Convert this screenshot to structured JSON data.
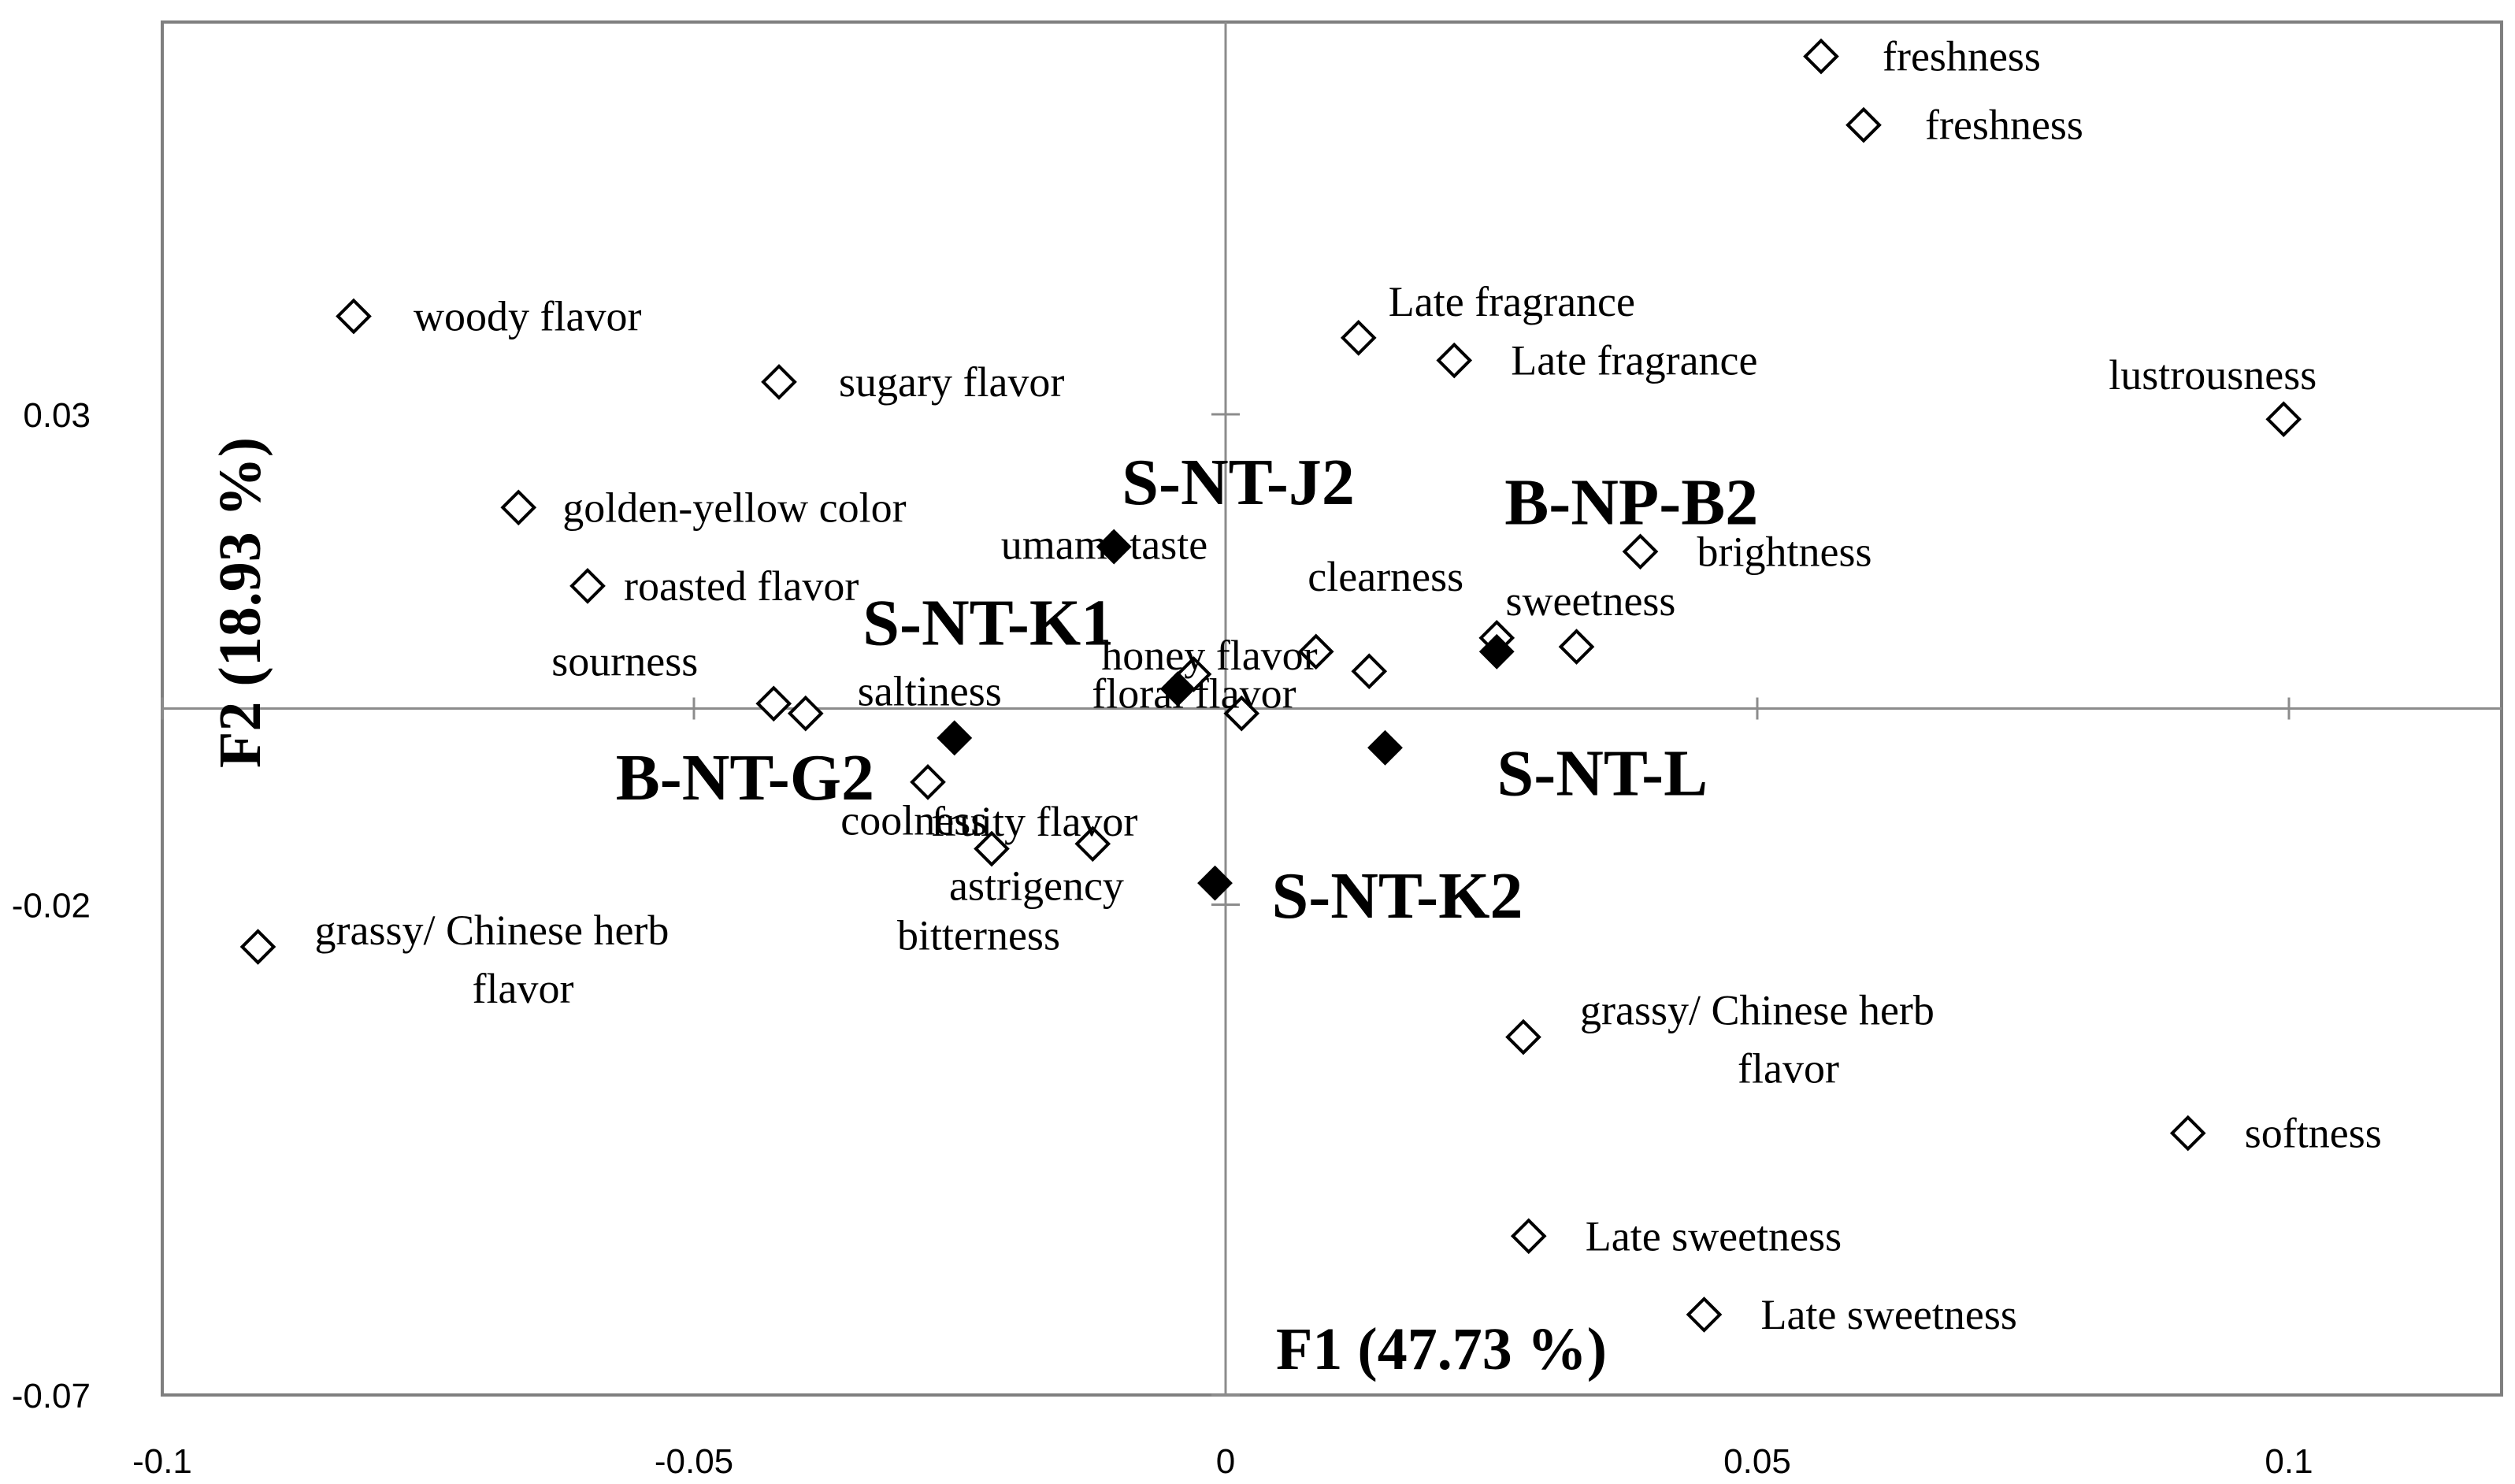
{
  "chart_data": {
    "type": "scatter",
    "title": "",
    "xlabel": "F1 (47.73 %)",
    "ylabel": "F2 (18.93 %)",
    "xlim": [
      -0.1,
      0.12
    ],
    "ylim": [
      -0.07,
      0.07
    ],
    "x_ticks": [
      {
        "value": -0.1,
        "label": "-0.1"
      },
      {
        "value": -0.05,
        "label": "-0.05"
      },
      {
        "value": 0,
        "label": "0"
      },
      {
        "value": 0.05,
        "label": "0.05"
      },
      {
        "value": 0.1,
        "label": "0.1"
      }
    ],
    "y_ticks": [
      {
        "value": 0.03,
        "label": "0.03"
      },
      {
        "value": -0.02,
        "label": "-0.02"
      },
      {
        "value": -0.07,
        "label": "-0.07"
      }
    ],
    "grid": false,
    "legend": "none",
    "colors": {
      "marker": "#000000",
      "frame": "#7f7f7f",
      "axis": "#8c8c8c"
    },
    "series": [
      {
        "marker": "open-diamond",
        "points": [
          {
            "x": 0.056,
            "y": 0.0665,
            "label": "freshness"
          },
          {
            "x": 0.06,
            "y": 0.0595,
            "label": "freshness"
          },
          {
            "x": -0.082,
            "y": 0.04,
            "label": "woody flavor"
          },
          {
            "x": -0.042,
            "y": 0.0333,
            "label": "sugary flavor"
          },
          {
            "x": 0.0125,
            "y": 0.0378,
            "label": "Late fragrance"
          },
          {
            "x": 0.0215,
            "y": 0.0355,
            "label": "Late fragrance"
          },
          {
            "x": 0.0995,
            "y": 0.0295,
            "label": "lustrousness"
          },
          {
            "x": -0.0665,
            "y": 0.0205,
            "label": "golden-yellow color"
          },
          {
            "x": -0.06,
            "y": 0.0125,
            "label": "roasted flavor"
          },
          {
            "x": 0.039,
            "y": 0.016,
            "label": "brightness"
          },
          {
            "x": 0.0255,
            "y": 0.0072,
            "label": "clearness"
          },
          {
            "x": 0.033,
            "y": 0.0063,
            "label": "sweetness"
          },
          {
            "x": 0.0135,
            "y": 0.0038,
            "label": "honey flavor"
          },
          {
            "x": 0.0085,
            "y": 0.0058,
            "label": "umami taste"
          },
          {
            "x": -0.003,
            "y": 0.0035,
            "label": ""
          },
          {
            "x": -0.0425,
            "y": 0.0005,
            "label": "sourness"
          },
          {
            "x": -0.0395,
            "y": -0.0005,
            "label": "saltiness"
          },
          {
            "x": 0.0015,
            "y": -0.0005,
            "label": "floral flavor"
          },
          {
            "x": -0.028,
            "y": -0.0075,
            "label": "fruity flavor"
          },
          {
            "x": -0.022,
            "y": -0.0143,
            "label": "bitterness"
          },
          {
            "x": -0.0125,
            "y": -0.0138,
            "label": "coolness"
          },
          {
            "x": -0.091,
            "y": -0.0243,
            "label": "grassy/ Chinese herb flavor"
          },
          {
            "x": 0.028,
            "y": -0.0335,
            "label": "grassy/ Chinese herb flavor"
          },
          {
            "x": 0.0905,
            "y": -0.0433,
            "label": "softness"
          },
          {
            "x": 0.0285,
            "y": -0.0538,
            "label": "Late sweetness"
          },
          {
            "x": 0.045,
            "y": -0.0618,
            "label": "Late sweetness"
          }
        ]
      },
      {
        "marker": "filled-diamond",
        "points": [
          {
            "x": -0.0105,
            "y": 0.0165,
            "label": "S-NT-J2"
          },
          {
            "x": 0.0255,
            "y": 0.0058,
            "label": "B-NP-B2"
          },
          {
            "x": -0.0045,
            "y": 0.002,
            "label": "S-NT-K1"
          },
          {
            "x": -0.0255,
            "y": -0.003,
            "label": "B-NT-G2"
          },
          {
            "x": 0.015,
            "y": -0.004,
            "label": "S-NT-L"
          },
          {
            "x": -0.001,
            "y": -0.0178,
            "label": "S-NT-K2"
          }
        ]
      }
    ],
    "extra_labels": [
      "astrigency",
      "flavor",
      "flavor"
    ]
  }
}
